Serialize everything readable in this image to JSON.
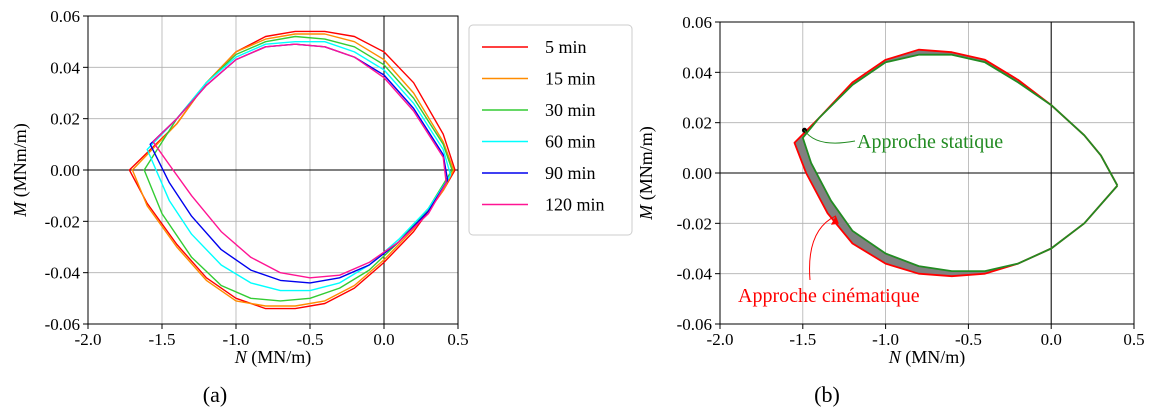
{
  "chart_data": [
    {
      "type": "line",
      "panel_label": "(a)",
      "xlabel": {
        "var": "N",
        "unit": " (MN/m)"
      },
      "ylabel": {
        "var": "M",
        "unit": " (MNm/m)"
      },
      "xlim": [
        -2.0,
        0.5
      ],
      "ylim": [
        -0.06,
        0.06
      ],
      "xticks": [
        -2.0,
        -1.5,
        -1.0,
        -0.5,
        0.0,
        0.5
      ],
      "xtick_labels": [
        "-2.0",
        "-1.5",
        "-1.0",
        "-0.5",
        "0.0",
        "0.5"
      ],
      "yticks": [
        -0.06,
        -0.04,
        -0.02,
        0.0,
        0.02,
        0.04,
        0.06
      ],
      "ytick_labels": [
        "-0.06",
        "-0.04",
        "-0.02",
        "0.00",
        "0.02",
        "0.04",
        "0.06"
      ],
      "grid": true,
      "legend_position": "right-outside",
      "series": [
        {
          "name": " 5 min",
          "color": "#ff0000",
          "x": [
            0.48,
            0.4,
            0.2,
            0.0,
            -0.2,
            -0.4,
            -0.6,
            -0.8,
            -1.0,
            -1.2,
            -1.4,
            -1.72,
            -1.6,
            -1.4,
            -1.2,
            -1.0,
            -0.8,
            -0.6,
            -0.4,
            -0.2,
            0.0,
            0.2,
            0.4,
            0.48
          ],
          "y": [
            0.0,
            0.014,
            0.034,
            0.046,
            0.052,
            0.054,
            0.054,
            0.052,
            0.046,
            0.034,
            0.018,
            0.0,
            -0.013,
            -0.029,
            -0.042,
            -0.05,
            -0.054,
            -0.054,
            -0.052,
            -0.046,
            -0.036,
            -0.024,
            -0.008,
            0.0
          ]
        },
        {
          "name": "15 min",
          "color": "#ff8c00",
          "x": [
            0.47,
            0.4,
            0.2,
            0.0,
            -0.2,
            -0.4,
            -0.6,
            -0.8,
            -1.0,
            -1.2,
            -1.4,
            -1.7,
            -1.6,
            -1.4,
            -1.2,
            -1.0,
            -0.8,
            -0.6,
            -0.4,
            -0.2,
            0.0,
            0.2,
            0.4,
            0.47
          ],
          "y": [
            0.0,
            0.011,
            0.03,
            0.043,
            0.05,
            0.053,
            0.053,
            0.051,
            0.046,
            0.034,
            0.018,
            0.0,
            -0.014,
            -0.03,
            -0.043,
            -0.051,
            -0.053,
            -0.053,
            -0.051,
            -0.045,
            -0.035,
            -0.023,
            -0.008,
            0.0
          ]
        },
        {
          "name": "30 min",
          "color": "#33cc33",
          "x": [
            0.46,
            0.4,
            0.2,
            0.0,
            -0.2,
            -0.4,
            -0.6,
            -0.8,
            -1.0,
            -1.2,
            -1.4,
            -1.62,
            -1.5,
            -1.3,
            -1.1,
            -0.9,
            -0.7,
            -0.5,
            -0.3,
            -0.1,
            0.1,
            0.3,
            0.46
          ],
          "y": [
            0.0,
            0.01,
            0.028,
            0.041,
            0.048,
            0.051,
            0.052,
            0.05,
            0.045,
            0.034,
            0.02,
            0.0,
            -0.017,
            -0.034,
            -0.045,
            -0.05,
            -0.051,
            -0.05,
            -0.046,
            -0.039,
            -0.028,
            -0.015,
            0.0
          ]
        },
        {
          "name": "60 min",
          "color": "#00ffff",
          "x": [
            0.45,
            0.4,
            0.2,
            0.0,
            -0.2,
            -0.4,
            -0.6,
            -0.8,
            -1.0,
            -1.2,
            -1.4,
            -1.6,
            -1.45,
            -1.3,
            -1.1,
            -0.9,
            -0.7,
            -0.5,
            -0.3,
            -0.1,
            0.1,
            0.3,
            0.45
          ],
          "y": [
            -0.002,
            0.008,
            0.026,
            0.039,
            0.046,
            0.05,
            0.05,
            0.049,
            0.044,
            0.034,
            0.02,
            0.008,
            -0.012,
            -0.025,
            -0.037,
            -0.044,
            -0.047,
            -0.047,
            -0.044,
            -0.037,
            -0.027,
            -0.015,
            -0.002
          ]
        },
        {
          "name": "90 min",
          "color": "#0000ee",
          "x": [
            0.43,
            0.4,
            0.2,
            0.0,
            -0.2,
            -0.4,
            -0.6,
            -0.8,
            -1.0,
            -1.2,
            -1.4,
            -1.58,
            -1.45,
            -1.3,
            -1.1,
            -0.9,
            -0.7,
            -0.5,
            -0.3,
            -0.1,
            0.1,
            0.3,
            0.43
          ],
          "y": [
            -0.004,
            0.006,
            0.024,
            0.037,
            0.044,
            0.048,
            0.049,
            0.048,
            0.043,
            0.033,
            0.02,
            0.01,
            -0.005,
            -0.018,
            -0.031,
            -0.039,
            -0.043,
            -0.044,
            -0.042,
            -0.037,
            -0.028,
            -0.016,
            -0.004
          ]
        },
        {
          "name": "120 min",
          "color": "#ff1493",
          "x": [
            0.42,
            0.4,
            0.2,
            0.0,
            -0.2,
            -0.4,
            -0.6,
            -0.8,
            -1.0,
            -1.2,
            -1.4,
            -1.56,
            -1.45,
            -1.3,
            -1.1,
            -0.9,
            -0.7,
            -0.5,
            -0.3,
            -0.1,
            0.1,
            0.3,
            0.42
          ],
          "y": [
            -0.005,
            0.005,
            0.023,
            0.036,
            0.044,
            0.048,
            0.049,
            0.048,
            0.043,
            0.033,
            0.02,
            0.011,
            0.002,
            -0.01,
            -0.024,
            -0.034,
            -0.04,
            -0.042,
            -0.041,
            -0.036,
            -0.028,
            -0.017,
            -0.005
          ]
        }
      ]
    },
    {
      "type": "line",
      "panel_label": "(b)",
      "xlabel": {
        "var": "N",
        "unit": " (MN/m)"
      },
      "ylabel": {
        "var": "M",
        "unit": " (MNm/m)"
      },
      "xlim": [
        -2.0,
        0.5
      ],
      "ylim": [
        -0.06,
        0.06
      ],
      "xticks": [
        -2.0,
        -1.5,
        -1.0,
        -0.5,
        0.0,
        0.5
      ],
      "xtick_labels": [
        "-2.0",
        "-1.5",
        "-1.0",
        "-0.5",
        "0.0",
        "0.5"
      ],
      "yticks": [
        -0.06,
        -0.04,
        -0.02,
        0.0,
        0.02,
        0.04,
        0.06
      ],
      "ytick_labels": [
        "-0.06",
        "-0.04",
        "-0.02",
        "0.00",
        "0.02",
        "0.04",
        "0.06"
      ],
      "grid": true,
      "band_color": "#808080",
      "series": [
        {
          "name": "Approche cinématique",
          "color": "#ff0000",
          "x": [
            0.4,
            0.3,
            0.2,
            0.0,
            -0.2,
            -0.4,
            -0.6,
            -0.8,
            -1.0,
            -1.2,
            -1.4,
            -1.55,
            -1.48,
            -1.35,
            -1.2,
            -1.0,
            -0.8,
            -0.6,
            -0.4,
            -0.2,
            0.0,
            0.2,
            0.4
          ],
          "y": [
            -0.005,
            0.007,
            0.015,
            0.027,
            0.037,
            0.045,
            0.048,
            0.049,
            0.045,
            0.036,
            0.022,
            0.012,
            0.0,
            -0.016,
            -0.028,
            -0.036,
            -0.04,
            -0.041,
            -0.04,
            -0.036,
            -0.03,
            -0.02,
            -0.005
          ]
        },
        {
          "name": "Approche statique",
          "color": "#228b22",
          "x": [
            0.4,
            0.3,
            0.2,
            0.0,
            -0.2,
            -0.4,
            -0.6,
            -0.8,
            -1.0,
            -1.2,
            -1.4,
            -1.5,
            -1.45,
            -1.33,
            -1.2,
            -1.0,
            -0.8,
            -0.6,
            -0.4,
            -0.2,
            0.0,
            0.2,
            0.4
          ],
          "y": [
            -0.005,
            0.007,
            0.015,
            0.027,
            0.036,
            0.044,
            0.047,
            0.047,
            0.044,
            0.035,
            0.022,
            0.014,
            0.004,
            -0.011,
            -0.023,
            -0.032,
            -0.037,
            -0.039,
            -0.039,
            -0.036,
            -0.03,
            -0.02,
            -0.005
          ]
        }
      ],
      "annotations": [
        {
          "text": "Approche statique",
          "color": "#228b22",
          "point": [
            -1.49,
            0.017
          ]
        },
        {
          "text": "Approche cinématique",
          "color": "#ff0000",
          "point": [
            -1.3,
            -0.017
          ]
        }
      ]
    }
  ]
}
